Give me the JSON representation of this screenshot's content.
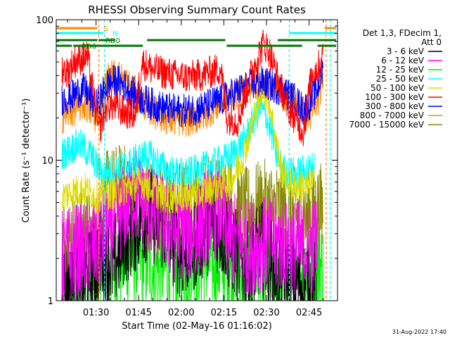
{
  "chart_data": {
    "type": "line",
    "title": "RHESSI Observing Summary Count Rates",
    "xlabel": "Start Time (02-May-16 01:16:02)",
    "ylabel": "Count Rate (s⁻¹ detector⁻¹)",
    "yscale": "log",
    "ylim": [
      1,
      100
    ],
    "xlim_minutes": [
      76,
      175
    ],
    "x_ticks": [
      {
        "label": "01:30",
        "minute": 90
      },
      {
        "label": "01:45",
        "minute": 105
      },
      {
        "label": "02:00",
        "minute": 120
      },
      {
        "label": "02:15",
        "minute": 135
      },
      {
        "label": "02:30",
        "minute": 150
      },
      {
        "label": "02:45",
        "minute": 165
      }
    ],
    "y_ticks": [
      {
        "label": "1",
        "value": 1
      },
      {
        "label": "10",
        "value": 10
      },
      {
        "label": "100",
        "value": 100
      }
    ],
    "legend": {
      "placement": "right",
      "header": [
        "Det 1,3, FDecim 1,",
        "Att 0"
      ],
      "entries": [
        {
          "label": "3 - 6 keV",
          "color": "#000000"
        },
        {
          "label": "6 - 12 keV",
          "color": "#ff00ff"
        },
        {
          "label": "12 - 25 keV",
          "color": "#00ee00"
        },
        {
          "label": "25 - 50 keV",
          "color": "#00ffff"
        },
        {
          "label": "50 - 100 keV",
          "color": "#dddd00"
        },
        {
          "label": "100 - 300 keV",
          "color": "#ff0000"
        },
        {
          "label": "300 - 800 keV",
          "color": "#0000ff"
        },
        {
          "label": "800 - 7000 keV",
          "color": "#ff8800"
        },
        {
          "label": "7000 - 15000 keV",
          "color": "#888800"
        }
      ]
    },
    "flags": [
      {
        "label": "S",
        "color": "#ff8800",
        "segments": [
          [
            76,
            91
          ],
          [
            170.5,
            175
          ]
        ]
      },
      {
        "label": "N",
        "color": "#00ffff",
        "segments": [
          [
            76,
            93
          ],
          [
            158,
            175
          ]
        ]
      },
      {
        "label": "RD0",
        "color": "#007700",
        "segments": [
          [
            76,
            91
          ],
          [
            91,
            97
          ],
          [
            108,
            136
          ],
          [
            154,
            175
          ]
        ]
      },
      {
        "label": "RD6",
        "color": "#007700",
        "segments": [
          [
            76,
            82
          ],
          [
            82,
            107
          ],
          [
            136,
            163
          ],
          [
            168,
            175
          ]
        ]
      }
    ],
    "series_profiles": [
      {
        "name": "3 - 6 keV",
        "color": "#000000",
        "points": [
          [
            78,
            1.3
          ],
          [
            80,
            1.2
          ],
          [
            84,
            1.1
          ],
          [
            88,
            1.5
          ],
          [
            92,
            2.2
          ],
          [
            96,
            1.8
          ],
          [
            100,
            2.8
          ],
          [
            104,
            3.5
          ],
          [
            108,
            4.2
          ],
          [
            112,
            3.8
          ],
          [
            116,
            3.0
          ],
          [
            120,
            2.2
          ],
          [
            124,
            2.5
          ],
          [
            128,
            3.2
          ],
          [
            132,
            3.6
          ],
          [
            136,
            2.8
          ],
          [
            140,
            2.0
          ],
          [
            144,
            1.6
          ],
          [
            148,
            2.4
          ],
          [
            152,
            1.8
          ],
          [
            156,
            1.4
          ],
          [
            160,
            1.3
          ],
          [
            164,
            1.4
          ],
          [
            168,
            1.2
          ]
        ]
      },
      {
        "name": "6 - 12 keV",
        "color": "#ff00ff",
        "points": [
          [
            78,
            2.0
          ],
          [
            82,
            2.2
          ],
          [
            86,
            2.3
          ],
          [
            90,
            2.4
          ],
          [
            94,
            3.2
          ],
          [
            98,
            4.0
          ],
          [
            102,
            5.5
          ],
          [
            104,
            5.8
          ],
          [
            106,
            5.0
          ],
          [
            110,
            4.2
          ],
          [
            114,
            3.5
          ],
          [
            118,
            3.2
          ],
          [
            122,
            3.0
          ],
          [
            126,
            3.4
          ],
          [
            130,
            4.2
          ],
          [
            134,
            4.6
          ],
          [
            136,
            3.0
          ],
          [
            140,
            2.6
          ],
          [
            144,
            2.4
          ],
          [
            148,
            2.5
          ],
          [
            152,
            2.6
          ],
          [
            156,
            2.5
          ],
          [
            160,
            2.4
          ],
          [
            164,
            2.3
          ],
          [
            168,
            2.6
          ]
        ]
      },
      {
        "name": "12 - 25 keV",
        "color": "#00ee00",
        "points": [
          [
            78,
            1.6
          ],
          [
            82,
            1.5
          ],
          [
            86,
            1.6
          ],
          [
            90,
            1.7
          ],
          [
            94,
            1.8
          ],
          [
            98,
            1.9
          ],
          [
            102,
            2.0
          ],
          [
            106,
            1.9
          ],
          [
            110,
            1.8
          ],
          [
            114,
            1.7
          ],
          [
            118,
            1.7
          ],
          [
            122,
            1.8
          ],
          [
            126,
            1.9
          ],
          [
            130,
            1.9
          ],
          [
            134,
            1.8
          ],
          [
            138,
            1.7
          ],
          [
            142,
            1.6
          ],
          [
            146,
            1.7
          ],
          [
            150,
            1.6
          ],
          [
            154,
            1.7
          ],
          [
            158,
            1.6
          ],
          [
            162,
            1.6
          ],
          [
            166,
            1.8
          ],
          [
            170,
            1.7
          ]
        ]
      },
      {
        "name": "25 - 50 keV",
        "color": "#00ffff",
        "points": [
          [
            78,
            11
          ],
          [
            81,
            12
          ],
          [
            84,
            13
          ],
          [
            88,
            11
          ],
          [
            92,
            8
          ],
          [
            96,
            8.5
          ],
          [
            100,
            9
          ],
          [
            104,
            10
          ],
          [
            108,
            11
          ],
          [
            112,
            9.5
          ],
          [
            116,
            8.2
          ],
          [
            120,
            8
          ],
          [
            124,
            8.2
          ],
          [
            128,
            8.8
          ],
          [
            132,
            9.5
          ],
          [
            135,
            10
          ],
          [
            137,
            10.5
          ],
          [
            140,
            12
          ],
          [
            143,
            15
          ],
          [
            146,
            20
          ],
          [
            148,
            24
          ],
          [
            150,
            20
          ],
          [
            152,
            15
          ],
          [
            154,
            10
          ],
          [
            156,
            8.5
          ],
          [
            160,
            8
          ],
          [
            164,
            8.5
          ],
          [
            167,
            9
          ]
        ]
      },
      {
        "name": "50 - 100 keV",
        "color": "#dddd00",
        "points": [
          [
            78,
            5.5
          ],
          [
            82,
            6
          ],
          [
            86,
            6.2
          ],
          [
            90,
            5.5
          ],
          [
            94,
            5.8
          ],
          [
            98,
            6
          ],
          [
            102,
            6.5
          ],
          [
            106,
            7
          ],
          [
            110,
            6.2
          ],
          [
            114,
            5.5
          ],
          [
            118,
            5.4
          ],
          [
            122,
            5.5
          ],
          [
            126,
            5.8
          ],
          [
            130,
            6.2
          ],
          [
            134,
            6.8
          ],
          [
            136,
            7
          ],
          [
            139,
            8
          ],
          [
            142,
            11
          ],
          [
            145,
            18
          ],
          [
            147,
            27
          ],
          [
            149,
            33
          ],
          [
            151,
            26
          ],
          [
            153,
            15
          ],
          [
            155,
            9
          ],
          [
            157,
            7
          ],
          [
            160,
            6.5
          ],
          [
            164,
            6.5
          ],
          [
            167,
            7
          ]
        ]
      },
      {
        "name": "100 - 300 keV",
        "color": "#ff0000",
        "points": [
          [
            78,
            45
          ],
          [
            80,
            42
          ],
          [
            82,
            50
          ],
          [
            84,
            52
          ],
          [
            87,
            55
          ],
          [
            91,
            16
          ],
          [
            94,
            25
          ],
          [
            97,
            24
          ],
          [
            100,
            22
          ],
          [
            104,
            21
          ],
          [
            106,
            50
          ],
          [
            110,
            44
          ],
          [
            114,
            42
          ],
          [
            118,
            40
          ],
          [
            122,
            39
          ],
          [
            126,
            40
          ],
          [
            130,
            42
          ],
          [
            134,
            45
          ],
          [
            136,
            20
          ],
          [
            140,
            19
          ],
          [
            144,
            38
          ],
          [
            147,
            55
          ],
          [
            149,
            68
          ],
          [
            151,
            60
          ],
          [
            154,
            38
          ],
          [
            157,
            25
          ],
          [
            160,
            20
          ],
          [
            163,
            16
          ],
          [
            166,
            42
          ],
          [
            168,
            45
          ],
          [
            170,
            55
          ]
        ]
      },
      {
        "name": "300 - 800 keV",
        "color": "#0000ff",
        "points": [
          [
            78,
            27
          ],
          [
            81,
            28
          ],
          [
            84,
            31
          ],
          [
            86,
            32
          ],
          [
            90,
            24
          ],
          [
            94,
            35
          ],
          [
            97,
            37
          ],
          [
            100,
            34
          ],
          [
            104,
            29
          ],
          [
            108,
            26
          ],
          [
            112,
            24
          ],
          [
            116,
            23
          ],
          [
            120,
            22.5
          ],
          [
            124,
            23
          ],
          [
            128,
            24
          ],
          [
            132,
            26
          ],
          [
            136,
            28
          ],
          [
            140,
            31
          ],
          [
            144,
            34
          ],
          [
            148,
            36
          ],
          [
            152,
            34
          ],
          [
            156,
            31
          ],
          [
            160,
            27
          ],
          [
            163,
            23
          ],
          [
            165,
            25
          ],
          [
            168,
            33
          ],
          [
            170,
            45
          ]
        ]
      },
      {
        "name": "800 - 7000 keV",
        "color": "#ff8800",
        "points": [
          [
            78,
            20
          ],
          [
            81,
            22
          ],
          [
            84,
            24
          ],
          [
            86,
            25
          ],
          [
            90,
            20
          ],
          [
            94,
            38
          ],
          [
            97,
            41
          ],
          [
            100,
            37
          ],
          [
            104,
            30
          ],
          [
            108,
            24
          ],
          [
            112,
            21
          ],
          [
            116,
            19.5
          ],
          [
            120,
            19
          ],
          [
            124,
            19.5
          ],
          [
            128,
            21
          ],
          [
            132,
            24
          ],
          [
            136,
            27
          ],
          [
            140,
            30
          ],
          [
            144,
            33
          ],
          [
            148,
            36
          ],
          [
            152,
            34
          ],
          [
            156,
            30
          ],
          [
            160,
            26
          ],
          [
            163,
            22
          ],
          [
            165,
            20
          ],
          [
            168,
            26
          ],
          [
            170,
            40
          ]
        ]
      },
      {
        "name": "7000 - 15000 keV",
        "color": "#888800",
        "points": [
          [
            78,
            2.5
          ],
          [
            82,
            2.7
          ],
          [
            86,
            2.8
          ],
          [
            90,
            2.6
          ],
          [
            94,
            5.5
          ],
          [
            98,
            6
          ],
          [
            102,
            5.8
          ],
          [
            106,
            5.2
          ],
          [
            110,
            4.8
          ],
          [
            114,
            4.6
          ],
          [
            118,
            4.5
          ],
          [
            122,
            4.6
          ],
          [
            126,
            4.8
          ],
          [
            130,
            5
          ],
          [
            134,
            5.2
          ],
          [
            138,
            4.6
          ],
          [
            142,
            4
          ],
          [
            146,
            4.4
          ],
          [
            150,
            4.6
          ],
          [
            154,
            4.4
          ],
          [
            158,
            4.2
          ],
          [
            162,
            4
          ],
          [
            166,
            4.2
          ],
          [
            170,
            4.4
          ]
        ]
      }
    ],
    "data_gaps": [
      {
        "color": "#ff8800",
        "style": "dash",
        "minute": 91
      },
      {
        "color": "#00ffff",
        "style": "dash",
        "minute": 93
      },
      {
        "color": "#00ffff",
        "style": "dash",
        "minute": 158
      },
      {
        "color": "#ff8800",
        "style": "dash",
        "minute": 171
      },
      {
        "color": "#00ffff",
        "style": "dash",
        "minute": 172.5
      }
    ]
  },
  "footer": {
    "timestamp": "31-Aug-2022 17:40"
  }
}
